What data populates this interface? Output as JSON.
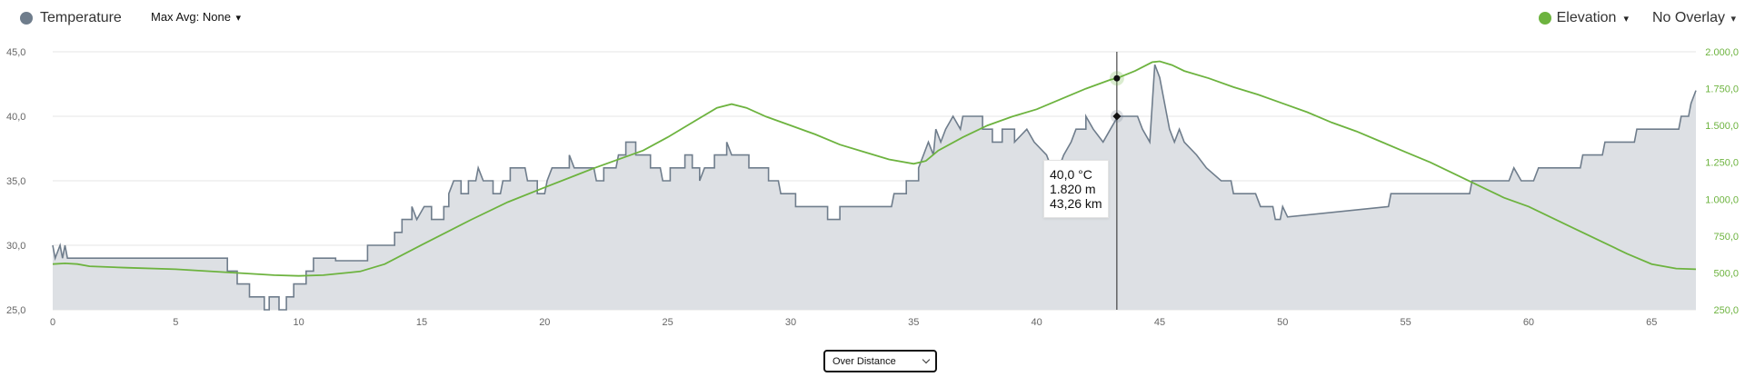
{
  "legend": {
    "temperature_label": "Temperature",
    "temperature_color": "#6f7d8c",
    "max_avg_label": "Max Avg: None",
    "caret": "▾",
    "elevation_label": "Elevation",
    "elevation_color": "#6db33f",
    "overlay_label": "No Overlay"
  },
  "tooltip": {
    "temp": "40,0 °C",
    "elevation": "1.820 m",
    "distance": "43,26 km"
  },
  "select": {
    "value": "Over Distance"
  },
  "chart_data": {
    "type": "area",
    "xlim": [
      0,
      66.8
    ],
    "x_ticks": [
      0,
      5,
      10,
      15,
      20,
      25,
      30,
      35,
      40,
      45,
      50,
      55,
      60,
      65
    ],
    "y_left": {
      "range": [
        25,
        45
      ],
      "ticks": [
        "25,0",
        "30,0",
        "35,0",
        "40,0",
        "45,0"
      ],
      "tick_values": [
        25,
        30,
        35,
        40,
        45
      ]
    },
    "y_right": {
      "range": [
        250,
        2000
      ],
      "ticks": [
        "250,0",
        "500,0",
        "750,0",
        "1.000,0",
        "1.250,0",
        "1.500,0",
        "1.750,0",
        "2.000,0"
      ],
      "tick_values": [
        250,
        500,
        750,
        1000,
        1250,
        1500,
        1750,
        2000
      ]
    },
    "crosshair_x": 43.26,
    "series": [
      {
        "name": "Temperature",
        "axis": "left",
        "color": "#6f7d8c",
        "fill": "#dde0e4",
        "points": [
          [
            0,
            30
          ],
          [
            0.1,
            29
          ],
          [
            0.3,
            30
          ],
          [
            0.4,
            29
          ],
          [
            0.5,
            30
          ],
          [
            0.6,
            29
          ],
          [
            7.1,
            29
          ],
          [
            7.1,
            28
          ],
          [
            7.5,
            28
          ],
          [
            7.5,
            27
          ],
          [
            8.0,
            27
          ],
          [
            8.0,
            26
          ],
          [
            8.6,
            26
          ],
          [
            8.6,
            25
          ],
          [
            8.8,
            25
          ],
          [
            8.8,
            26
          ],
          [
            9.2,
            26
          ],
          [
            9.2,
            25
          ],
          [
            9.5,
            25
          ],
          [
            9.5,
            26
          ],
          [
            9.8,
            26
          ],
          [
            9.8,
            27
          ],
          [
            10.3,
            27
          ],
          [
            10.3,
            28
          ],
          [
            10.6,
            28
          ],
          [
            10.6,
            29
          ],
          [
            11.5,
            29
          ],
          [
            11.5,
            28.8
          ],
          [
            12.8,
            28.8
          ],
          [
            12.8,
            30
          ],
          [
            13.9,
            30
          ],
          [
            13.9,
            31
          ],
          [
            14.2,
            31
          ],
          [
            14.2,
            32
          ],
          [
            14.6,
            32
          ],
          [
            14.6,
            33
          ],
          [
            14.8,
            32
          ],
          [
            15.1,
            33
          ],
          [
            15.4,
            33
          ],
          [
            15.4,
            32
          ],
          [
            15.9,
            32
          ],
          [
            15.9,
            33
          ],
          [
            16.1,
            33
          ],
          [
            16.1,
            34
          ],
          [
            16.3,
            35
          ],
          [
            16.6,
            35
          ],
          [
            16.6,
            34
          ],
          [
            16.9,
            34
          ],
          [
            16.9,
            35
          ],
          [
            17.2,
            35
          ],
          [
            17.3,
            36
          ],
          [
            17.5,
            35
          ],
          [
            17.9,
            35
          ],
          [
            17.9,
            34
          ],
          [
            18.2,
            34
          ],
          [
            18.3,
            35
          ],
          [
            18.6,
            35
          ],
          [
            18.6,
            36
          ],
          [
            19.2,
            36
          ],
          [
            19.3,
            35
          ],
          [
            19.7,
            35
          ],
          [
            19.7,
            34
          ],
          [
            20.0,
            34
          ],
          [
            20.1,
            35
          ],
          [
            20.3,
            36
          ],
          [
            21.0,
            36
          ],
          [
            21.0,
            37
          ],
          [
            21.2,
            36
          ],
          [
            22.0,
            36
          ],
          [
            22.1,
            35
          ],
          [
            22.4,
            35
          ],
          [
            22.4,
            36
          ],
          [
            22.9,
            36
          ],
          [
            23.0,
            37
          ],
          [
            23.3,
            37
          ],
          [
            23.3,
            38
          ],
          [
            23.7,
            38
          ],
          [
            23.7,
            37
          ],
          [
            24.3,
            37
          ],
          [
            24.3,
            36
          ],
          [
            24.7,
            36
          ],
          [
            24.8,
            35
          ],
          [
            25.1,
            35
          ],
          [
            25.1,
            36
          ],
          [
            25.7,
            36
          ],
          [
            25.7,
            37
          ],
          [
            26.0,
            37
          ],
          [
            26.0,
            36
          ],
          [
            26.3,
            36
          ],
          [
            26.3,
            35
          ],
          [
            26.5,
            36
          ],
          [
            26.9,
            36
          ],
          [
            26.9,
            37
          ],
          [
            27.4,
            37
          ],
          [
            27.4,
            38
          ],
          [
            27.6,
            37
          ],
          [
            28.3,
            37
          ],
          [
            28.3,
            36
          ],
          [
            29.1,
            36
          ],
          [
            29.1,
            35
          ],
          [
            29.5,
            35
          ],
          [
            29.6,
            34
          ],
          [
            30.2,
            34
          ],
          [
            30.2,
            33
          ],
          [
            31.5,
            33
          ],
          [
            31.5,
            32
          ],
          [
            32.0,
            32
          ],
          [
            32.0,
            33
          ],
          [
            32.8,
            33
          ],
          [
            34.1,
            33
          ],
          [
            34.2,
            34
          ],
          [
            34.7,
            34
          ],
          [
            34.7,
            35
          ],
          [
            35.2,
            35
          ],
          [
            35.2,
            36
          ],
          [
            35.4,
            37
          ],
          [
            35.6,
            38
          ],
          [
            35.8,
            37
          ],
          [
            35.9,
            39
          ],
          [
            36.1,
            38
          ],
          [
            36.3,
            39
          ],
          [
            36.6,
            40
          ],
          [
            36.9,
            39
          ],
          [
            37.0,
            40
          ],
          [
            37.8,
            40
          ],
          [
            37.8,
            39
          ],
          [
            38.2,
            39
          ],
          [
            38.2,
            38
          ],
          [
            38.6,
            38
          ],
          [
            38.6,
            39
          ],
          [
            39.1,
            39
          ],
          [
            39.1,
            38
          ],
          [
            39.6,
            39
          ],
          [
            39.9,
            38
          ],
          [
            40.4,
            37
          ],
          [
            40.6,
            36
          ],
          [
            40.9,
            36
          ],
          [
            41.1,
            37
          ],
          [
            41.4,
            38
          ],
          [
            41.6,
            39
          ],
          [
            42.0,
            39
          ],
          [
            42.0,
            40
          ],
          [
            42.3,
            39
          ],
          [
            42.7,
            38
          ],
          [
            43.0,
            39
          ],
          [
            43.3,
            40
          ],
          [
            43.5,
            40
          ],
          [
            44.1,
            40
          ],
          [
            44.3,
            39
          ],
          [
            44.6,
            38
          ],
          [
            44.8,
            44
          ],
          [
            45.0,
            43
          ],
          [
            45.3,
            40
          ],
          [
            45.4,
            39
          ],
          [
            45.6,
            38
          ],
          [
            45.8,
            39
          ],
          [
            46.0,
            38
          ],
          [
            46.5,
            37
          ],
          [
            46.9,
            36
          ],
          [
            47.5,
            35
          ],
          [
            47.9,
            35
          ],
          [
            48.0,
            34
          ],
          [
            48.9,
            34
          ],
          [
            49.1,
            33
          ],
          [
            49.6,
            33
          ],
          [
            49.7,
            32
          ],
          [
            49.9,
            32
          ],
          [
            50.0,
            33
          ],
          [
            50.2,
            32.2
          ],
          [
            54.3,
            33
          ],
          [
            54.4,
            34
          ],
          [
            57.6,
            34
          ],
          [
            57.7,
            35
          ],
          [
            59.2,
            35
          ],
          [
            59.4,
            36
          ],
          [
            59.7,
            35
          ],
          [
            60.2,
            35
          ],
          [
            60.4,
            36
          ],
          [
            62.1,
            36
          ],
          [
            62.2,
            37
          ],
          [
            63.0,
            37
          ],
          [
            63.1,
            38
          ],
          [
            64.3,
            38
          ],
          [
            64.4,
            39
          ],
          [
            66.1,
            39
          ],
          [
            66.2,
            40
          ],
          [
            66.5,
            40
          ],
          [
            66.6,
            41
          ],
          [
            66.8,
            42
          ]
        ]
      },
      {
        "name": "Elevation",
        "axis": "right",
        "color": "#6db33f",
        "points": [
          [
            0,
            560
          ],
          [
            0.5,
            565
          ],
          [
            1.0,
            560
          ],
          [
            1.5,
            545
          ],
          [
            3,
            535
          ],
          [
            5,
            525
          ],
          [
            7,
            505
          ],
          [
            9,
            485
          ],
          [
            10,
            480
          ],
          [
            11,
            485
          ],
          [
            12.5,
            510
          ],
          [
            13.5,
            560
          ],
          [
            15,
            690
          ],
          [
            17,
            860
          ],
          [
            18.5,
            980
          ],
          [
            20,
            1080
          ],
          [
            22,
            1210
          ],
          [
            24,
            1330
          ],
          [
            25,
            1420
          ],
          [
            26,
            1520
          ],
          [
            27,
            1620
          ],
          [
            27.6,
            1645
          ],
          [
            28.2,
            1620
          ],
          [
            29,
            1560
          ],
          [
            30,
            1500
          ],
          [
            31,
            1440
          ],
          [
            32,
            1370
          ],
          [
            33,
            1320
          ],
          [
            34,
            1270
          ],
          [
            35,
            1240
          ],
          [
            35.5,
            1260
          ],
          [
            36,
            1330
          ],
          [
            37,
            1420
          ],
          [
            38,
            1500
          ],
          [
            39,
            1560
          ],
          [
            40,
            1610
          ],
          [
            41,
            1680
          ],
          [
            42,
            1750
          ],
          [
            43,
            1810
          ],
          [
            43.26,
            1820
          ],
          [
            44,
            1870
          ],
          [
            44.7,
            1930
          ],
          [
            45,
            1935
          ],
          [
            45.5,
            1910
          ],
          [
            46,
            1870
          ],
          [
            47,
            1820
          ],
          [
            48,
            1760
          ],
          [
            49,
            1710
          ],
          [
            50,
            1650
          ],
          [
            51,
            1590
          ],
          [
            52,
            1520
          ],
          [
            53,
            1460
          ],
          [
            54,
            1390
          ],
          [
            55,
            1320
          ],
          [
            56,
            1250
          ],
          [
            57,
            1170
          ],
          [
            58,
            1090
          ],
          [
            59,
            1010
          ],
          [
            60,
            950
          ],
          [
            61,
            870
          ],
          [
            62,
            790
          ],
          [
            63,
            710
          ],
          [
            64,
            630
          ],
          [
            65,
            560
          ],
          [
            66,
            530
          ],
          [
            66.8,
            525
          ]
        ]
      }
    ]
  }
}
